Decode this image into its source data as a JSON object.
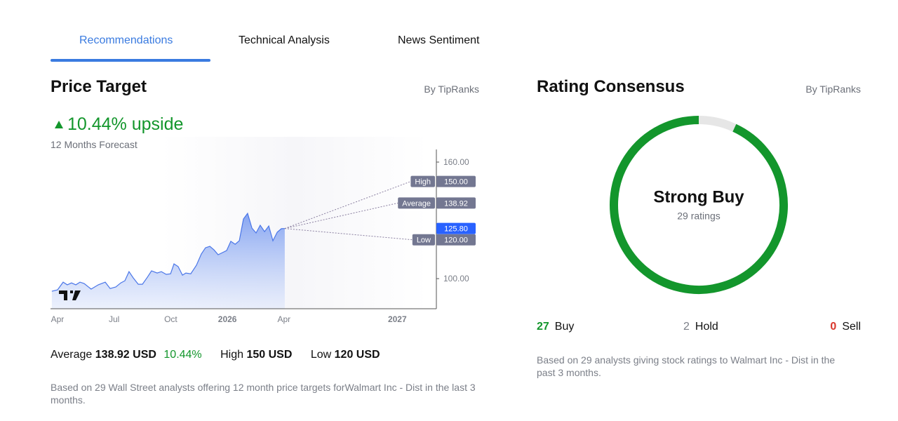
{
  "tabs": [
    "Recommendations",
    "Technical Analysis",
    "News Sentiment"
  ],
  "price_target": {
    "title": "Price Target",
    "source": "By TipRanks",
    "upside": "10.44% upside",
    "forecast_period": "12 Months Forecast",
    "summary": {
      "average_label": "Average",
      "average_value": "138.92 USD",
      "average_upside": "10.44%",
      "high_label": "High",
      "high_value": "150 USD",
      "low_label": "Low",
      "low_value": "120 USD"
    },
    "note": "Based on 29 Wall Street analysts offering 12 month price targets forWalmart Inc - Dist in the last 3 months."
  },
  "chart_data": {
    "type": "line",
    "color": "#4a76e8",
    "x": [
      -0.3,
      0,
      0.3,
      0.52,
      0.74,
      0.97,
      1.19,
      1.41,
      1.78,
      2.16,
      2.53,
      2.79,
      3.09,
      3.35,
      3.57,
      3.79,
      4.01,
      4.28,
      4.5,
      4.76,
      4.98,
      5.28,
      5.5,
      5.76,
      5.99,
      6.17,
      6.39,
      6.62,
      6.8,
      7.06,
      7.36,
      7.62,
      7.84,
      8.07,
      8.29,
      8.51,
      8.74,
      8.96,
      9.18,
      9.41,
      9.63,
      9.85,
      10.07,
      10.3,
      10.52,
      10.74,
      10.97,
      11.19,
      11.41,
      11.64,
      11.86,
      12.04
    ],
    "values": [
      93.5,
      94.2,
      98.2,
      96.8,
      97.8,
      96.8,
      98.2,
      97.5,
      94.6,
      96.8,
      98.2,
      94.9,
      95.7,
      97.8,
      98.9,
      103.6,
      100.4,
      97.1,
      97.1,
      100.7,
      104.0,
      102.9,
      103.6,
      102.2,
      102.5,
      107.6,
      106.2,
      101.8,
      102.9,
      102.5,
      106.9,
      112.7,
      115.9,
      116.6,
      114.8,
      112.3,
      113.4,
      114.5,
      119.2,
      117.7,
      119.5,
      130.7,
      133.6,
      126.0,
      123.5,
      127.5,
      124.2,
      127.1,
      119.5,
      123.9,
      125.7,
      125.8
    ],
    "xlim": [
      -0.37,
      20.07
    ],
    "ylim": [
      84.5,
      166.5
    ],
    "xticks": [
      {
        "value": 0,
        "label": "Apr"
      },
      {
        "value": 3,
        "label": "Jul"
      },
      {
        "value": 6,
        "label": "Oct"
      },
      {
        "value": 9,
        "label": "2026"
      },
      {
        "value": 12,
        "label": "Apr"
      },
      {
        "value": 18,
        "label": "2027"
      }
    ],
    "yticks": [
      {
        "value": 100,
        "label": "100.00"
      },
      {
        "value": 160,
        "label": "160.00"
      }
    ],
    "current": {
      "value": 125.8,
      "label": "125.80"
    },
    "targets": [
      {
        "name": "High",
        "value": 150,
        "label": "150.00"
      },
      {
        "name": "Average",
        "value": 138.92,
        "label": "138.92"
      },
      {
        "name": "Low",
        "value": 120,
        "label": "120.00"
      }
    ]
  },
  "rating": {
    "title": "Rating Consensus",
    "source": "By TipRanks",
    "consensus": "Strong Buy",
    "total": "29 ratings",
    "counts": [
      {
        "name": "Buy",
        "value": 27,
        "color": "#13962c"
      },
      {
        "name": "Hold",
        "value": 2,
        "color": "#e6e6e6"
      },
      {
        "name": "Sell",
        "value": 0,
        "color": "#d9362b"
      }
    ],
    "note": "Based on 29 analysts giving stock ratings to Walmart Inc - Dist in the past 3 months."
  }
}
